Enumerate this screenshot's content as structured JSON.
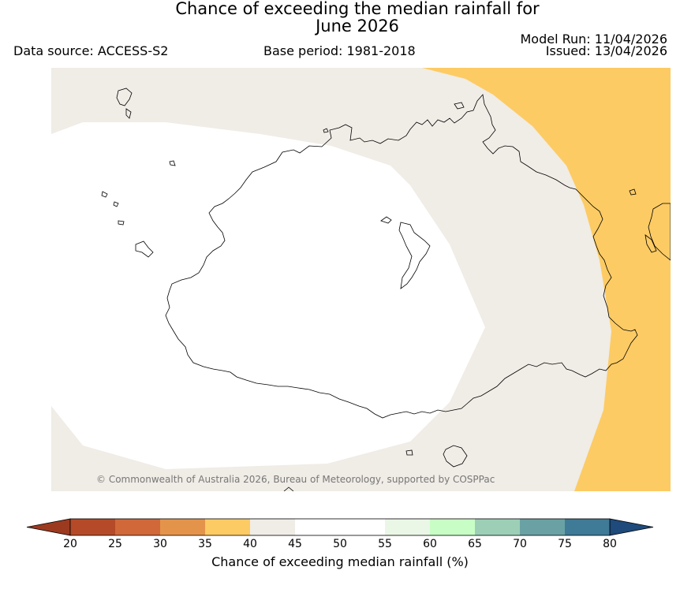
{
  "header": {
    "title_line1": "Chance of exceeding the median rainfall for",
    "title_line2": "June 2026",
    "data_source": "Data source: ACCESS-S2",
    "base_period": "Base period: 1981-2018",
    "model_run": "Model Run: 11/04/2026",
    "issued": "Issued: 13/04/2026"
  },
  "map": {
    "copyright": "© Commonwealth of Australia 2026, Bureau of Meteorology, supported by COSPPac",
    "zones": [
      {
        "name": "35-40%",
        "color": "#fdcb64"
      },
      {
        "name": "40-45%",
        "color": "#f0ece6"
      },
      {
        "name": "45-55%",
        "color": "#ffffff"
      }
    ]
  },
  "colorbar": {
    "label": "Chance of exceeding median rainfall (%)",
    "ticks": [
      "20",
      "25",
      "30",
      "35",
      "40",
      "45",
      "50",
      "55",
      "60",
      "65",
      "70",
      "75",
      "80"
    ],
    "colors": [
      "#b54a28",
      "#d0683a",
      "#e4944a",
      "#fdcb64",
      "#f0ece6",
      "#ffffff",
      "#ffffff",
      "#eaf6e6",
      "#c8fdc6",
      "#9ccfb6",
      "#6aa1a4",
      "#3f7a96"
    ],
    "low_extend_color": "#9c3a20",
    "high_extend_color": "#1e4a7c"
  }
}
